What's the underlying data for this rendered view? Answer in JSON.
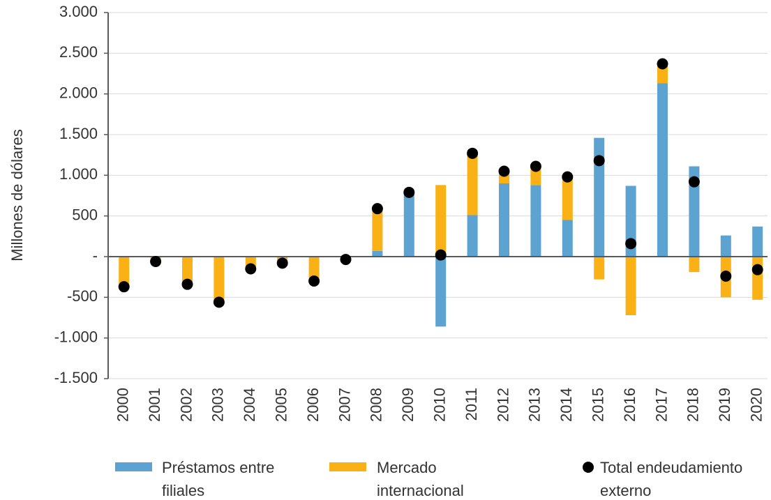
{
  "chart_data": {
    "type": "bar_stacked_with_points",
    "y_label": "Millones de dólares",
    "categories": [
      "2000",
      "2001",
      "2002",
      "2003",
      "2004",
      "2005",
      "2006",
      "2007",
      "2008",
      "2009",
      "2010",
      "2011",
      "2012",
      "2013",
      "2014",
      "2015",
      "2016",
      "2017",
      "2018",
      "2019",
      "2020"
    ],
    "series": [
      {
        "name": "Préstamos entre filiales",
        "color": "#5ca3d1",
        "values": [
          0,
          0,
          0,
          0,
          0,
          0,
          0,
          0,
          70,
          790,
          -860,
          510,
          900,
          880,
          450,
          1460,
          870,
          2130,
          1110,
          260,
          370
        ]
      },
      {
        "name": "Mercado internacional",
        "color": "#f9b116",
        "values": [
          -370,
          -60,
          -340,
          -560,
          -150,
          -80,
          -300,
          -35,
          520,
          0,
          880,
          760,
          150,
          230,
          530,
          -280,
          -720,
          240,
          -190,
          -500,
          -530
        ]
      },
      {
        "name": "Total endeudamiento externo",
        "color": "#000000",
        "type": "scatter",
        "values": [
          -370,
          -60,
          -340,
          -560,
          -150,
          -80,
          -300,
          -35,
          590,
          790,
          20,
          1270,
          1050,
          1110,
          980,
          1180,
          160,
          2370,
          920,
          -240,
          -160
        ]
      }
    ],
    "ylim": [
      -1500,
      3000
    ],
    "yticks": [
      {
        "value": -1500,
        "label": "-1.500"
      },
      {
        "value": -1000,
        "label": "-1.000"
      },
      -500,
      {
        "value": 0,
        "label": "-"
      },
      500,
      {
        "value": 1000,
        "label": "1.000"
      },
      {
        "value": 1500,
        "label": "1.500"
      },
      {
        "value": 2000,
        "label": "2.000"
      },
      {
        "value": 2500,
        "label": "2.500"
      },
      {
        "value": 3000,
        "label": "3.000"
      }
    ],
    "grid": true
  }
}
